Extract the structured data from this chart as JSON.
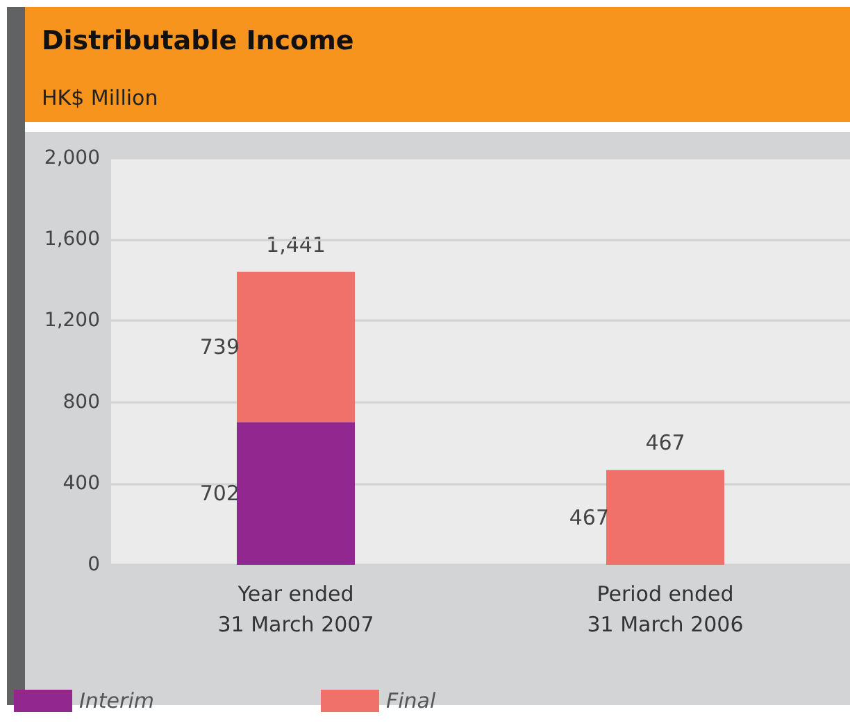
{
  "chart_data": {
    "type": "bar",
    "title": "Distributable Income",
    "subtitle": "HK$ Million",
    "categories": [
      "Year ended\n31 March 2007",
      "Period ended\n31 March 2006"
    ],
    "series": [
      {
        "name": "Interim",
        "color": "#92278f",
        "values": [
          702,
          null
        ]
      },
      {
        "name": "Final",
        "color": "#f0706a",
        "values": [
          739,
          467
        ]
      }
    ],
    "stacked": true,
    "data_labels": true,
    "totals": [
      "1,441",
      "467"
    ],
    "ylim": [
      0,
      2000
    ],
    "yticks": [
      {
        "value": 0,
        "label": "0"
      },
      {
        "value": 400,
        "label": "400"
      },
      {
        "value": 800,
        "label": "800"
      },
      {
        "value": 1200,
        "label": "1,200"
      },
      {
        "value": 1600,
        "label": "1,600"
      },
      {
        "value": 2000,
        "label": "2,000"
      }
    ],
    "grid": "y",
    "legend": "bottom left"
  }
}
